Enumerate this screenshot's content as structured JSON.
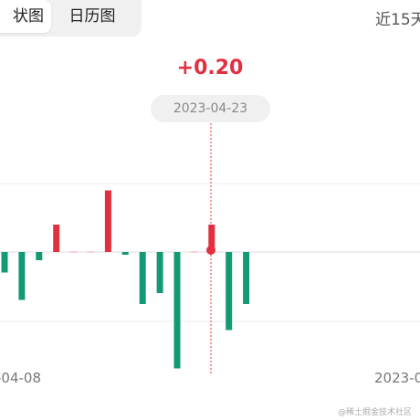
{
  "tabs": {
    "active_label": "状图",
    "inactive_label": "日历图"
  },
  "range_label": "近15天",
  "tooltip": {
    "value": "+0.20",
    "date": "2023-04-23"
  },
  "xaxis": {
    "start_label": "-04-08",
    "end_label": "2023-0"
  },
  "watermark": "@稀土掘金技术社区",
  "colors": {
    "up": "#e23040",
    "down": "#139a74",
    "grid": "#e8e8e8",
    "baseline": "#dddddd"
  },
  "chart_data": {
    "type": "bar",
    "selected_index": 12,
    "series": [
      {
        "values": [
          -0.15,
          -0.35,
          -0.06,
          0.2,
          0.0,
          0.0,
          0.45,
          -0.02,
          -0.38,
          -0.3,
          -0.85,
          0.0,
          0.2,
          -0.57,
          -0.38
        ]
      }
    ],
    "ylim": [
      -1.0,
      0.75
    ]
  }
}
